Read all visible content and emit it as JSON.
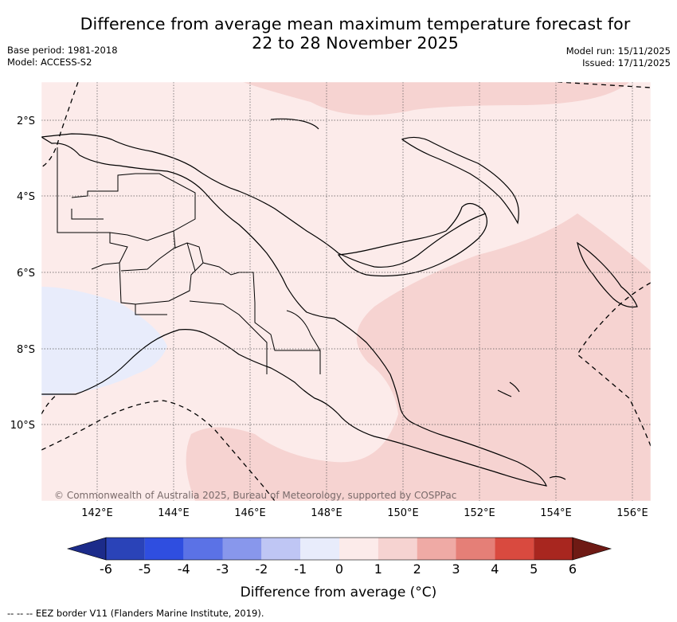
{
  "header": {
    "title_line1": "Difference from average mean maximum temperature forecast for",
    "title_line2": "22 to 28 November 2025",
    "base_period": "Base period: 1981-2018",
    "model": "Model: ACCESS-S2",
    "model_run": "Model run: 15/11/2025",
    "issued": "Issued: 17/11/2025"
  },
  "map": {
    "lat_ticks": [
      "2°S",
      "4°S",
      "6°S",
      "8°S",
      "10°S"
    ],
    "lon_ticks": [
      "142°E",
      "144°E",
      "146°E",
      "148°E",
      "150°E",
      "152°E",
      "154°E",
      "156°E"
    ],
    "copyright": "© Commonwealth of Australia 2025, Bureau of Meteorology, supported by COSPPac"
  },
  "colorbar": {
    "title": "Difference from average (°C)",
    "ticks": [
      "-6",
      "-5",
      "-4",
      "-3",
      "-2",
      "-1",
      "0",
      "1",
      "2",
      "3",
      "4",
      "5",
      "6"
    ],
    "colors": [
      "#1c2b8a",
      "#2a43b8",
      "#2f4ee0",
      "#5b72e6",
      "#8897ec",
      "#bfc6f4",
      "#e8ecfb",
      "#fcebea",
      "#f6d3d1",
      "#efaaa5",
      "#e57f77",
      "#d94a3f",
      "#a8261f",
      "#6e1a14"
    ]
  },
  "footnote": "--  --  -- EEZ border V11 (Flanders Marine Institute, 2019)."
}
